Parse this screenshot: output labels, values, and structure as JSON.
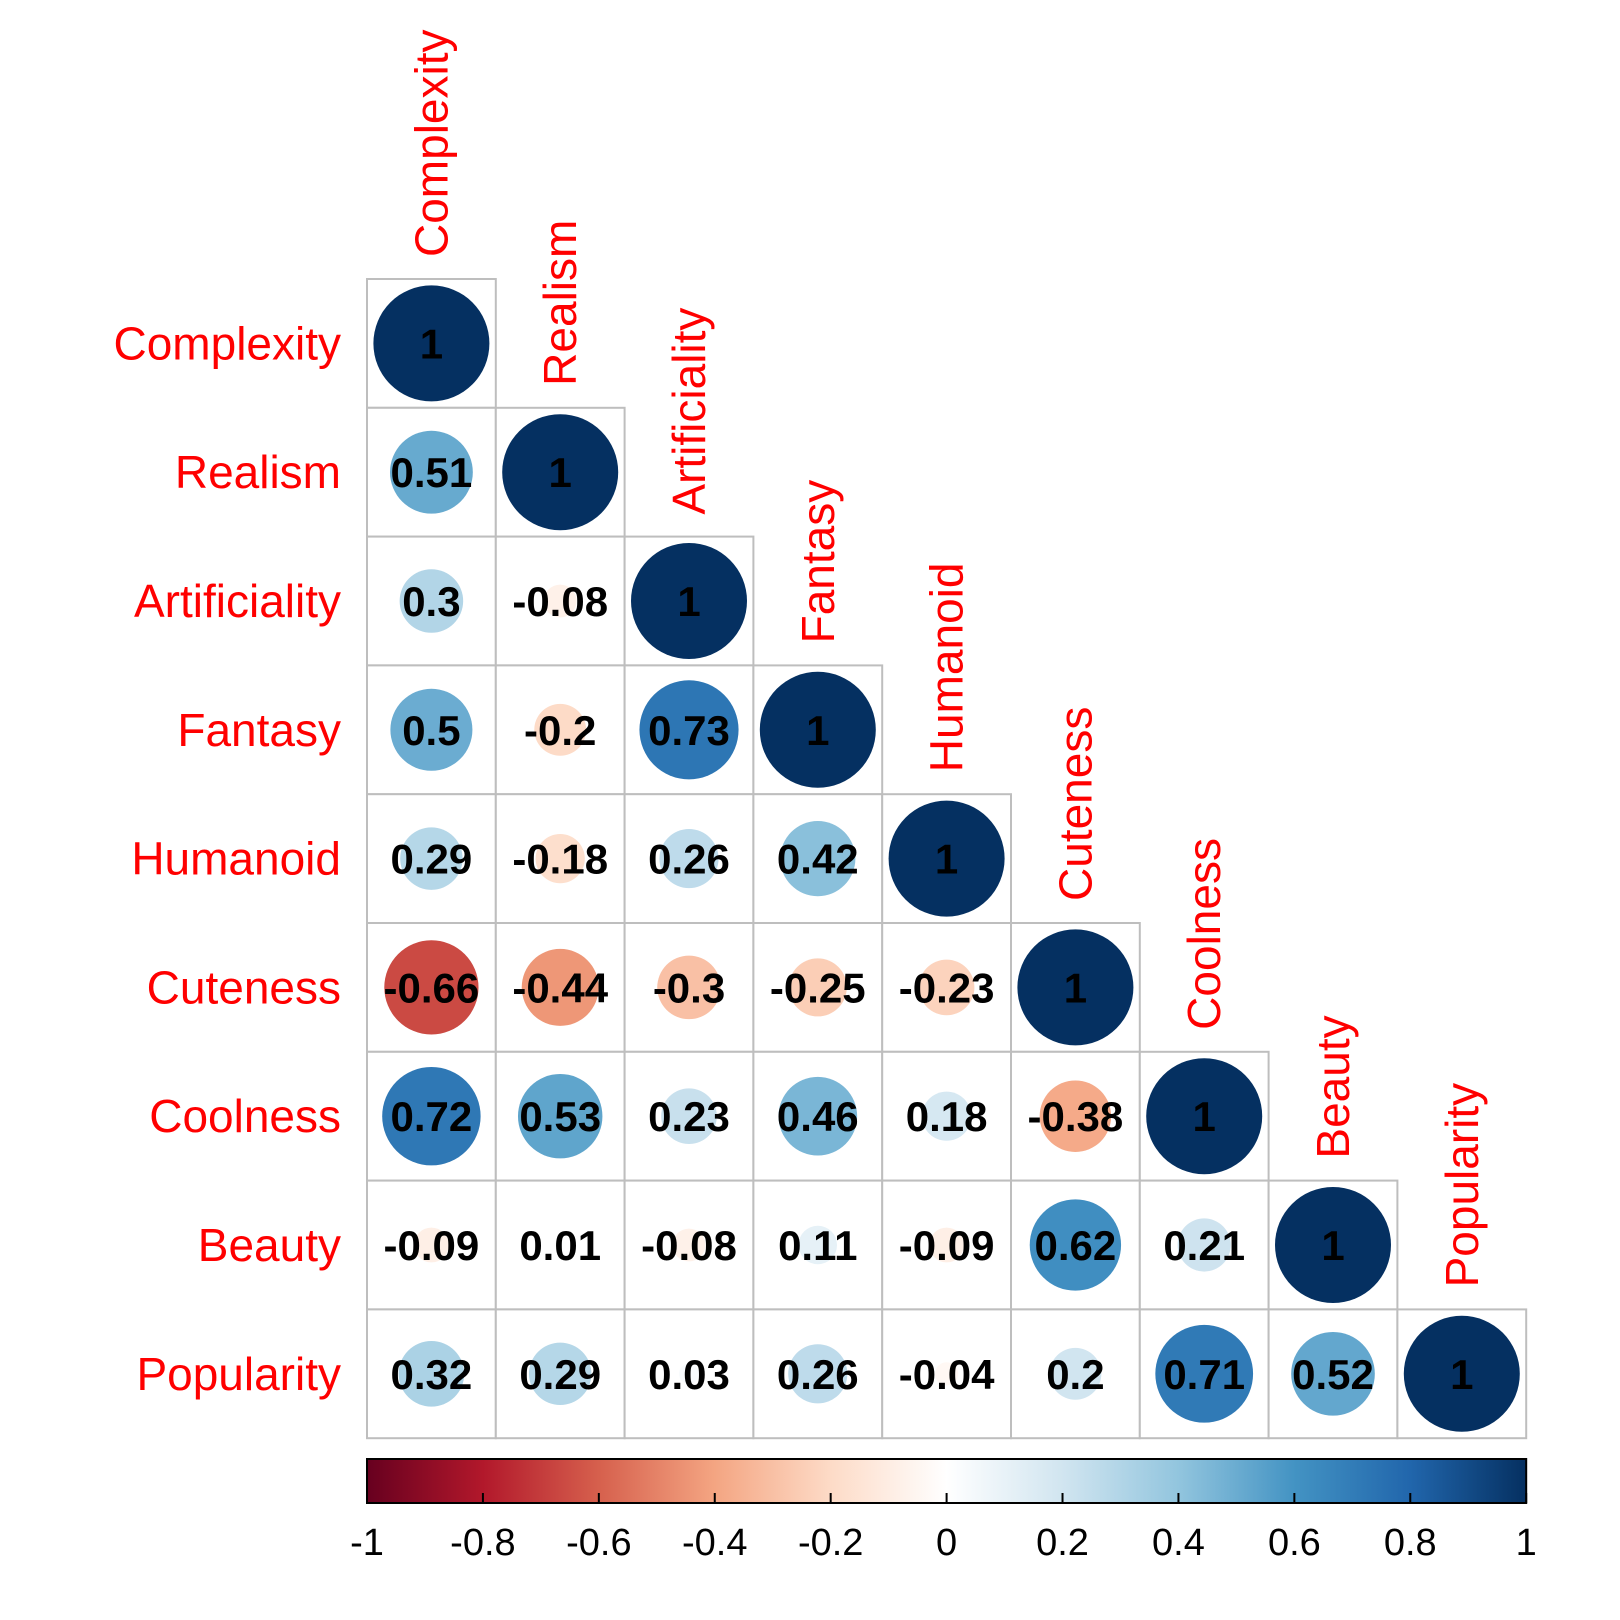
{
  "chart_data": {
    "type": "heatmap",
    "variables": [
      "Complexity",
      "Realism",
      "Artificiality",
      "Fantasy",
      "Humanoid",
      "Cuteness",
      "Coolness",
      "Beauty",
      "Popularity"
    ],
    "matrix_lower": [
      [
        "1"
      ],
      [
        "0.51",
        "1"
      ],
      [
        "0.3",
        "-0.08",
        "1"
      ],
      [
        "0.5",
        "-0.2",
        "0.73",
        "1"
      ],
      [
        "0.29",
        "-0.18",
        "0.26",
        "0.42",
        "1"
      ],
      [
        "-0.66",
        "-0.44",
        "-0.3",
        "-0.25",
        "-0.23",
        "1"
      ],
      [
        "0.72",
        "0.53",
        "0.23",
        "0.46",
        "0.18",
        "-0.38",
        "1"
      ],
      [
        "-0.09",
        "0.01",
        "-0.08",
        "0.11",
        "-0.09",
        "0.62",
        "0.21",
        "1"
      ],
      [
        "0.32",
        "0.29",
        "0.03",
        "0.26",
        "-0.04",
        "0.2",
        "0.71",
        "0.52",
        "1"
      ]
    ],
    "colorbar": {
      "range": [
        -1,
        1
      ],
      "ticks": [
        "-1",
        "-0.8",
        "-0.6",
        "-0.4",
        "-0.2",
        "0",
        "0.2",
        "0.4",
        "0.6",
        "0.8",
        "1"
      ],
      "colors": [
        "#67001f",
        "#b2182b",
        "#d6604d",
        "#f4a582",
        "#fddbc7",
        "#ffffff",
        "#d1e5f0",
        "#92c5de",
        "#4393c3",
        "#2166ac",
        "#053061"
      ]
    },
    "label_color": "#ff0000",
    "grid_color": "#bebebe"
  }
}
